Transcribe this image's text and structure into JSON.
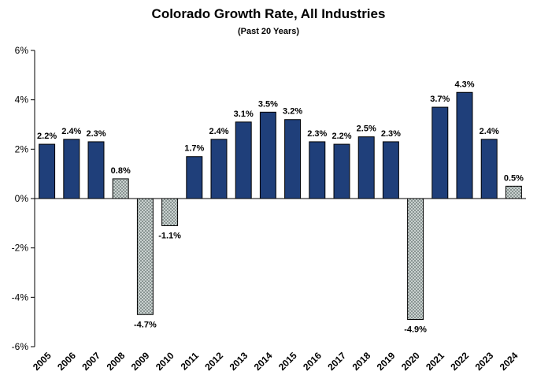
{
  "chart_data": {
    "type": "bar",
    "title": "Colorado Growth Rate, All Industries",
    "subtitle": "(Past 20 Years)",
    "xlabel": "",
    "ylabel": "",
    "ylim": [
      -6,
      6
    ],
    "yticks": [
      -6,
      -4,
      -2,
      0,
      2,
      4,
      6
    ],
    "ytick_labels": [
      "-6%",
      "-4%",
      "-2%",
      "0%",
      "2%",
      "4%",
      "6%"
    ],
    "grid": false,
    "legend": "none",
    "categories": [
      "2005",
      "2006",
      "2007",
      "2008",
      "2009",
      "2010",
      "2011",
      "2012",
      "2013",
      "2014",
      "2015",
      "2016",
      "2017",
      "2018",
      "2019",
      "2020",
      "2021",
      "2022",
      "2023",
      "2024"
    ],
    "values": [
      2.2,
      2.4,
      2.3,
      0.8,
      -4.7,
      -1.1,
      1.7,
      2.4,
      3.1,
      3.5,
      3.2,
      2.3,
      2.2,
      2.5,
      2.3,
      -4.9,
      3.7,
      4.3,
      2.4,
      0.5
    ],
    "data_labels": [
      "2.2%",
      "2.4%",
      "2.3%",
      "0.8%",
      "-4.7%",
      "-1.1%",
      "1.7%",
      "2.4%",
      "3.1%",
      "3.5%",
      "3.2%",
      "2.3%",
      "2.2%",
      "2.5%",
      "2.3%",
      "-4.9%",
      "3.7%",
      "4.3%",
      "2.4%",
      "0.5%"
    ],
    "colors": {
      "strong": "#1f3f7a",
      "weak_fill": "#c9d1cf",
      "weak_hatch": "#5c6a68",
      "axis": "#000000"
    },
    "weak_threshold": 1.0
  }
}
